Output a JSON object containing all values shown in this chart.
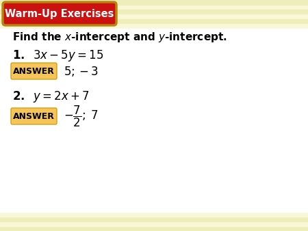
{
  "bg_top_color": "#F5F5D0",
  "bg_main_color": "#FFFFFF",
  "bg_bottom_color": "#F5F5D0",
  "header_bg": "#CC1111",
  "header_border": "#B8860B",
  "header_text": "Warm-Up Exercises",
  "header_text_color": "#FFFFFF",
  "answer_box_color": "#F5C55A",
  "answer_box_border": "#D4A017",
  "answer_text": "ANSWER",
  "stripe_light": "#EEEEBB",
  "stripe_dark": "#F8F8D8",
  "fig_width": 4.5,
  "fig_height": 3.38,
  "dpi": 100
}
